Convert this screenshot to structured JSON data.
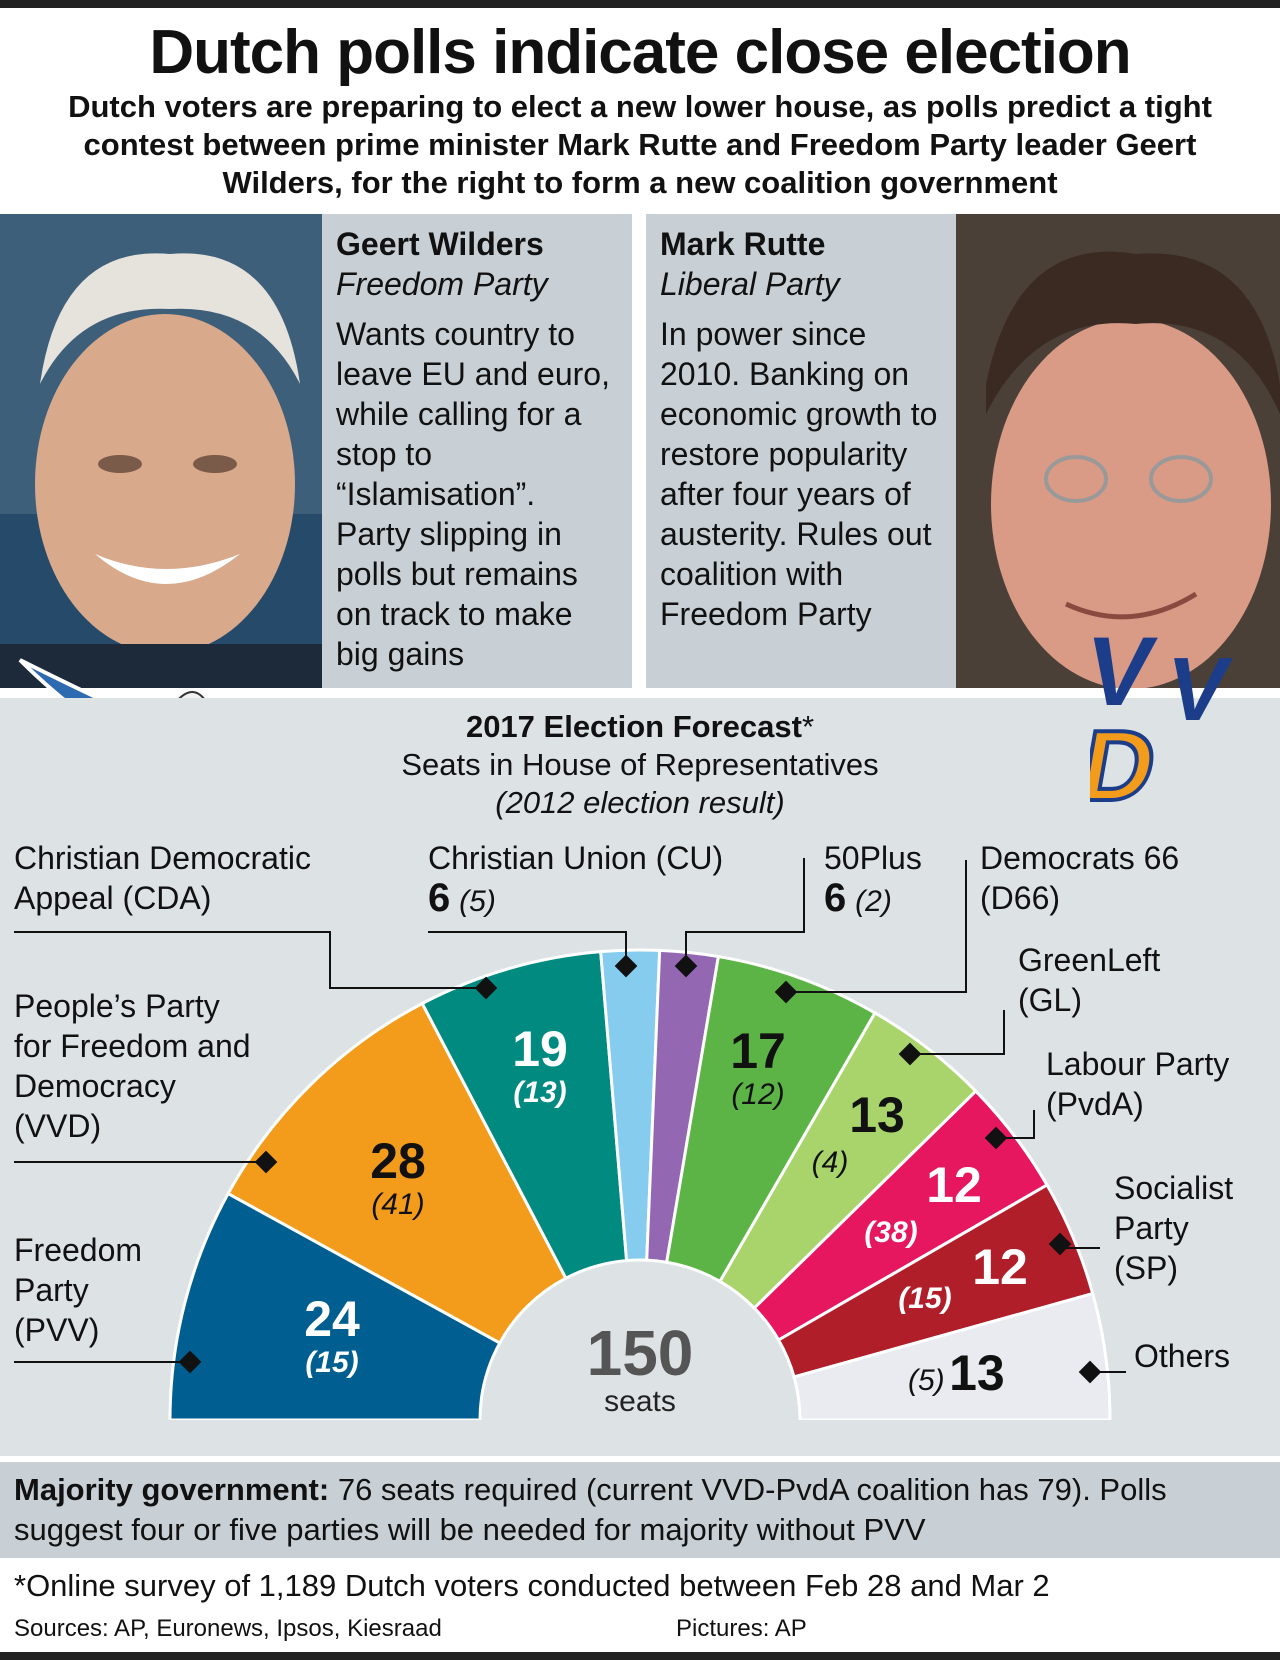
{
  "title": "Dutch polls indicate close election",
  "subtitle": "Dutch voters are preparing to elect a new lower house, as polls predict a tight contest between prime minister Mark Rutte and Freedom Party leader Geert Wilders, for the right to form a new coalition government",
  "profiles": [
    {
      "name": "Geert Wilders",
      "party": "Freedom Party",
      "desc": "Wants country to leave EU and euro, while calling for a stop to “Islamisation”. Party slipping in polls but remains on track to make big gains"
    },
    {
      "name": "Mark Rutte",
      "party": "Liberal Party",
      "desc": "In power since 2010. Banking on economic growth to restore popularity after four years of austerity. Rules out coalition with Freedom Party"
    }
  ],
  "logos": {
    "vvd_letters": [
      "V",
      "V",
      "D"
    ]
  },
  "chart_data": {
    "type": "pie",
    "subtype": "semicircle",
    "title_main": "2017 Election Forecast",
    "title_asterisk": "*",
    "subtitle": "Seats in House of Representatives",
    "subtitle2": "(2012 election result)",
    "total": 150,
    "total_label": "seats",
    "parties": [
      {
        "name": "Freedom Party (PVV)",
        "seats": 24,
        "prev": 15,
        "color": "#005e91"
      },
      {
        "name": "People’s Party for Freedom and Democracy (VVD)",
        "seats": 28,
        "prev": 41,
        "color": "#f39c1c"
      },
      {
        "name": "Christian Democratic Appeal (CDA)",
        "seats": 19,
        "prev": 13,
        "color": "#008a80"
      },
      {
        "name": "Christian Union (CU)",
        "seats": 6,
        "prev": 5,
        "color": "#86ccee"
      },
      {
        "name": "50Plus",
        "seats": 6,
        "prev": 2,
        "color": "#9467b3"
      },
      {
        "name": "Democrats 66 (D66)",
        "seats": 17,
        "prev": 12,
        "color": "#5db446"
      },
      {
        "name": "GreenLeft (GL)",
        "seats": 13,
        "prev": 4,
        "color": "#a8d46b"
      },
      {
        "name": "Labour Party (PvdA)",
        "seats": 12,
        "prev": 38,
        "color": "#e6165f"
      },
      {
        "name": "Socialist Party (SP)",
        "seats": 12,
        "prev": 15,
        "color": "#b01e2a"
      },
      {
        "name": "Others",
        "seats": 13,
        "prev": 5,
        "color": "#e9ebf0"
      }
    ]
  },
  "labels": {
    "cda": [
      "Christian Democratic",
      "Appeal (CDA)"
    ],
    "cu": "Christian Union (CU)",
    "cu_num": "6",
    "cu_prev": "(5)",
    "plus50": "50Plus",
    "plus50_num": "6",
    "plus50_prev": "(2)",
    "d66": [
      "Democrats 66",
      "(D66)"
    ],
    "gl": [
      "GreenLeft",
      "(GL)"
    ],
    "pvda": [
      "Labour Party",
      "(PvdA)"
    ],
    "sp": [
      "Socialist",
      "Party",
      "(SP)"
    ],
    "others": "Others",
    "vvd": [
      "People’s Party",
      "for Freedom and",
      "Democracy",
      "(VVD)"
    ],
    "pvv": [
      "Freedom",
      "Party",
      "(PVV)"
    ]
  },
  "segments": {
    "pvv": {
      "n": "24",
      "p": "(15)"
    },
    "vvd": {
      "n": "28",
      "p": "(41)"
    },
    "cda": {
      "n": "19",
      "p": "(13)"
    },
    "d66": {
      "n": "17",
      "p": "(12)"
    },
    "gl": {
      "n": "13",
      "p": "(4)"
    },
    "pvda": {
      "n": "12",
      "p": "(38)"
    },
    "sp": {
      "n": "12",
      "p": "(15)"
    },
    "others": {
      "n": "13",
      "p": "(5)"
    }
  },
  "center": {
    "total": "150",
    "unit": "seats"
  },
  "majority": {
    "bold": "Majority government:",
    "text": " 76 seats required (current VVD-PvdA coalition has 79). Polls suggest four or five parties will be needed for majority without PVV"
  },
  "note": "*Online survey of 1,189 Dutch voters conducted between Feb 28 and Mar 2",
  "sources": "Sources: AP, Euronews, Ipsos, Kiesraad",
  "pictures": "Pictures: AP"
}
